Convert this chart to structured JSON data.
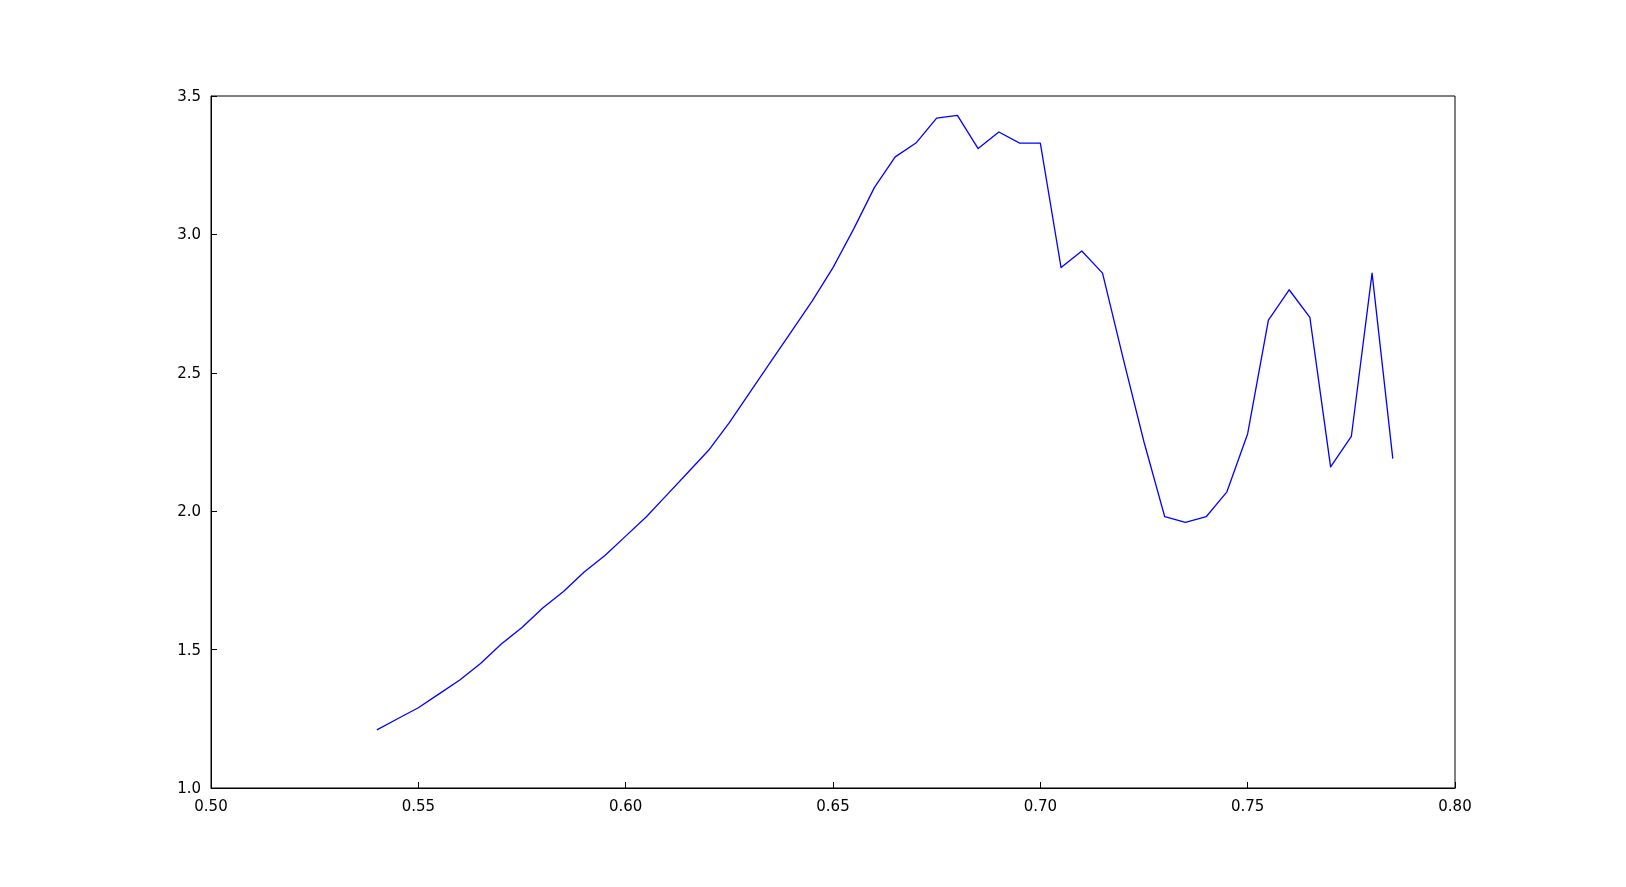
{
  "chart_data": {
    "type": "line",
    "x": [
      0.54,
      0.545,
      0.55,
      0.555,
      0.56,
      0.565,
      0.57,
      0.575,
      0.58,
      0.585,
      0.59,
      0.595,
      0.6,
      0.605,
      0.61,
      0.615,
      0.62,
      0.625,
      0.63,
      0.635,
      0.64,
      0.645,
      0.65,
      0.655,
      0.66,
      0.665,
      0.67,
      0.675,
      0.68,
      0.685,
      0.69,
      0.695,
      0.7,
      0.705,
      0.71,
      0.715,
      0.72,
      0.725,
      0.73,
      0.735,
      0.74,
      0.745,
      0.75,
      0.755,
      0.76,
      0.765,
      0.77,
      0.775,
      0.78,
      0.785
    ],
    "series": [
      {
        "color": "#0000ff",
        "values": [
          1.21,
          1.25,
          1.29,
          1.34,
          1.39,
          1.45,
          1.52,
          1.58,
          1.65,
          1.71,
          1.78,
          1.84,
          1.91,
          1.98,
          2.06,
          2.14,
          2.22,
          2.32,
          2.43,
          2.54,
          2.65,
          2.76,
          2.88,
          3.02,
          3.17,
          3.28,
          3.33,
          3.42,
          3.43,
          3.31,
          3.37,
          3.33,
          3.33,
          2.88,
          2.94,
          2.86,
          2.55,
          2.25,
          1.98,
          1.96,
          1.98,
          2.07,
          2.28,
          2.69,
          2.8,
          2.7,
          2.16,
          2.27,
          2.86,
          2.19
        ]
      }
    ],
    "xlim": [
      0.5,
      0.8
    ],
    "xticks": [
      {
        "value": 0.5,
        "label": "0.50"
      },
      0.55,
      {
        "value": 0.6,
        "label": "0.60"
      },
      0.65,
      {
        "value": 0.7,
        "label": "0.70"
      },
      0.75,
      {
        "value": 0.8,
        "label": "0.80"
      }
    ],
    "ylim": [
      1.0,
      3.5
    ],
    "yticks": [
      {
        "value": 1,
        "label": "1.0"
      },
      1.5,
      {
        "value": 2,
        "label": "2.0"
      },
      2.5,
      {
        "value": 3,
        "label": "3.0"
      },
      3.5
    ],
    "grid": false,
    "marker": "none",
    "line_style": "solid"
  }
}
